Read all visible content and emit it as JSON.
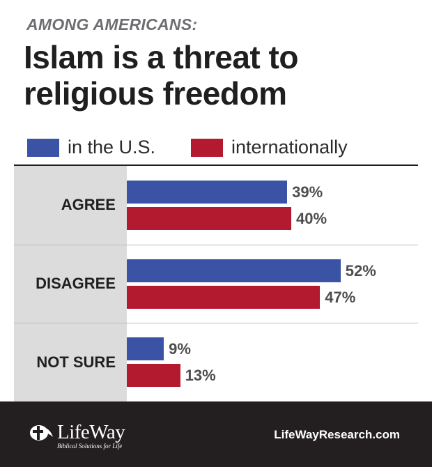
{
  "header": {
    "subtitle": "AMONG AMERICANS:",
    "title": "Islam is a threat to religious freedom"
  },
  "legend": [
    {
      "label": "in the U.S.",
      "color": "#3a53a4"
    },
    {
      "label": "internationally",
      "color": "#b3192f"
    }
  ],
  "chart_data": {
    "type": "bar",
    "orientation": "horizontal",
    "title": "Islam is a threat to religious freedom",
    "subtitle": "AMONG AMERICANS:",
    "categories": [
      "AGREE",
      "DISAGREE",
      "NOT SURE"
    ],
    "series": [
      {
        "name": "in the U.S.",
        "color": "#3a53a4",
        "values": [
          39,
          52,
          9
        ],
        "labels": [
          "39%",
          "52%",
          "9%"
        ]
      },
      {
        "name": "internationally",
        "color": "#b3192f",
        "values": [
          40,
          47,
          13
        ],
        "labels": [
          "40%",
          "47%",
          "13%"
        ]
      }
    ],
    "unit": "%",
    "xlim": [
      0,
      100
    ],
    "grid": false,
    "legend_position": "top-left"
  },
  "footer": {
    "logo_text": "LifeWay",
    "logo_tagline": "Biblical Solutions for Life",
    "website": "LifeWayResearch.com",
    "background": "#231f20"
  }
}
